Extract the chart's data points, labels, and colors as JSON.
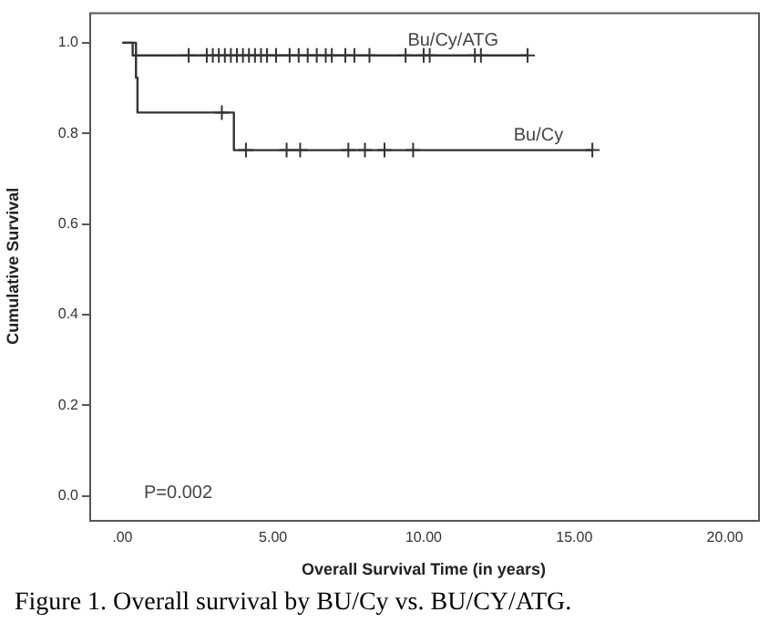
{
  "chart_data": {
    "type": "step",
    "title": "Figure 1. Overall survival by BU/Cy vs. BU/CY/ATG.",
    "xlabel": "Overall Survival Time (in years)",
    "ylabel": "Cumulative Survival",
    "xlim": [
      -1.1,
      21.1
    ],
    "xticks": [
      {
        "value": 0,
        "label": ".00"
      },
      {
        "value": 5,
        "label": "5.00"
      },
      {
        "value": 10,
        "label": "10.00"
      },
      {
        "value": 15,
        "label": "15.00"
      },
      {
        "value": 20,
        "label": "20.00"
      }
    ],
    "ylim": [
      -0.053,
      1.067
    ],
    "yticks": [
      {
        "value": 0,
        "label": "0.0"
      },
      {
        "value": 0.2,
        "label": "0.2"
      },
      {
        "value": 0.4,
        "label": "0.4"
      },
      {
        "value": 0.6,
        "label": "0.6"
      },
      {
        "value": 0.8,
        "label": "0.8"
      },
      {
        "value": 1,
        "label": "1.0"
      }
    ],
    "grid": false,
    "legend": false,
    "annotations": [
      "P=0.002"
    ],
    "series": [
      {
        "name": "Bu/Cy/ATG",
        "color": "#333333",
        "marker": "none",
        "x": [
          0,
          0.34,
          13.45
        ],
        "values": [
          1,
          0.972,
          0.972
        ]
      },
      {
        "name": "Bu/Cy",
        "color": "#333333",
        "marker": "none",
        "x": [
          0,
          0.45,
          0.5,
          3.7,
          15.6
        ],
        "values": [
          1,
          0.923,
          0.846,
          0.763,
          0.763
        ]
      },
      {
        "type": "scatter",
        "color": "#333333",
        "marker": "cross",
        "x": [
          2.2,
          2.8,
          3.0,
          3.2,
          3.4,
          3.6,
          3.8,
          4.0,
          4.2,
          4.4,
          4.6,
          4.8,
          5.1,
          5.55,
          5.85,
          6.15,
          6.45,
          6.75,
          6.95,
          7.4,
          7.7,
          8.2,
          9.4,
          10.0,
          10.2,
          11.7,
          11.9,
          13.45
        ],
        "values": [
          0.972,
          0.972,
          0.972,
          0.972,
          0.972,
          0.972,
          0.972,
          0.972,
          0.972,
          0.972,
          0.972,
          0.972,
          0.972,
          0.972,
          0.972,
          0.972,
          0.972,
          0.972,
          0.972,
          0.972,
          0.972,
          0.972,
          0.972,
          0.972,
          0.972,
          0.972,
          0.972,
          0.972
        ]
      },
      {
        "type": "scatter",
        "color": "#333333",
        "marker": "cross",
        "x": [
          3.3,
          4.1,
          5.45,
          5.9,
          7.5,
          8.05,
          8.7,
          9.65,
          15.6
        ],
        "values": [
          0.846,
          0.763,
          0.763,
          0.763,
          0.763,
          0.763,
          0.763,
          0.763,
          0.763
        ]
      }
    ]
  }
}
